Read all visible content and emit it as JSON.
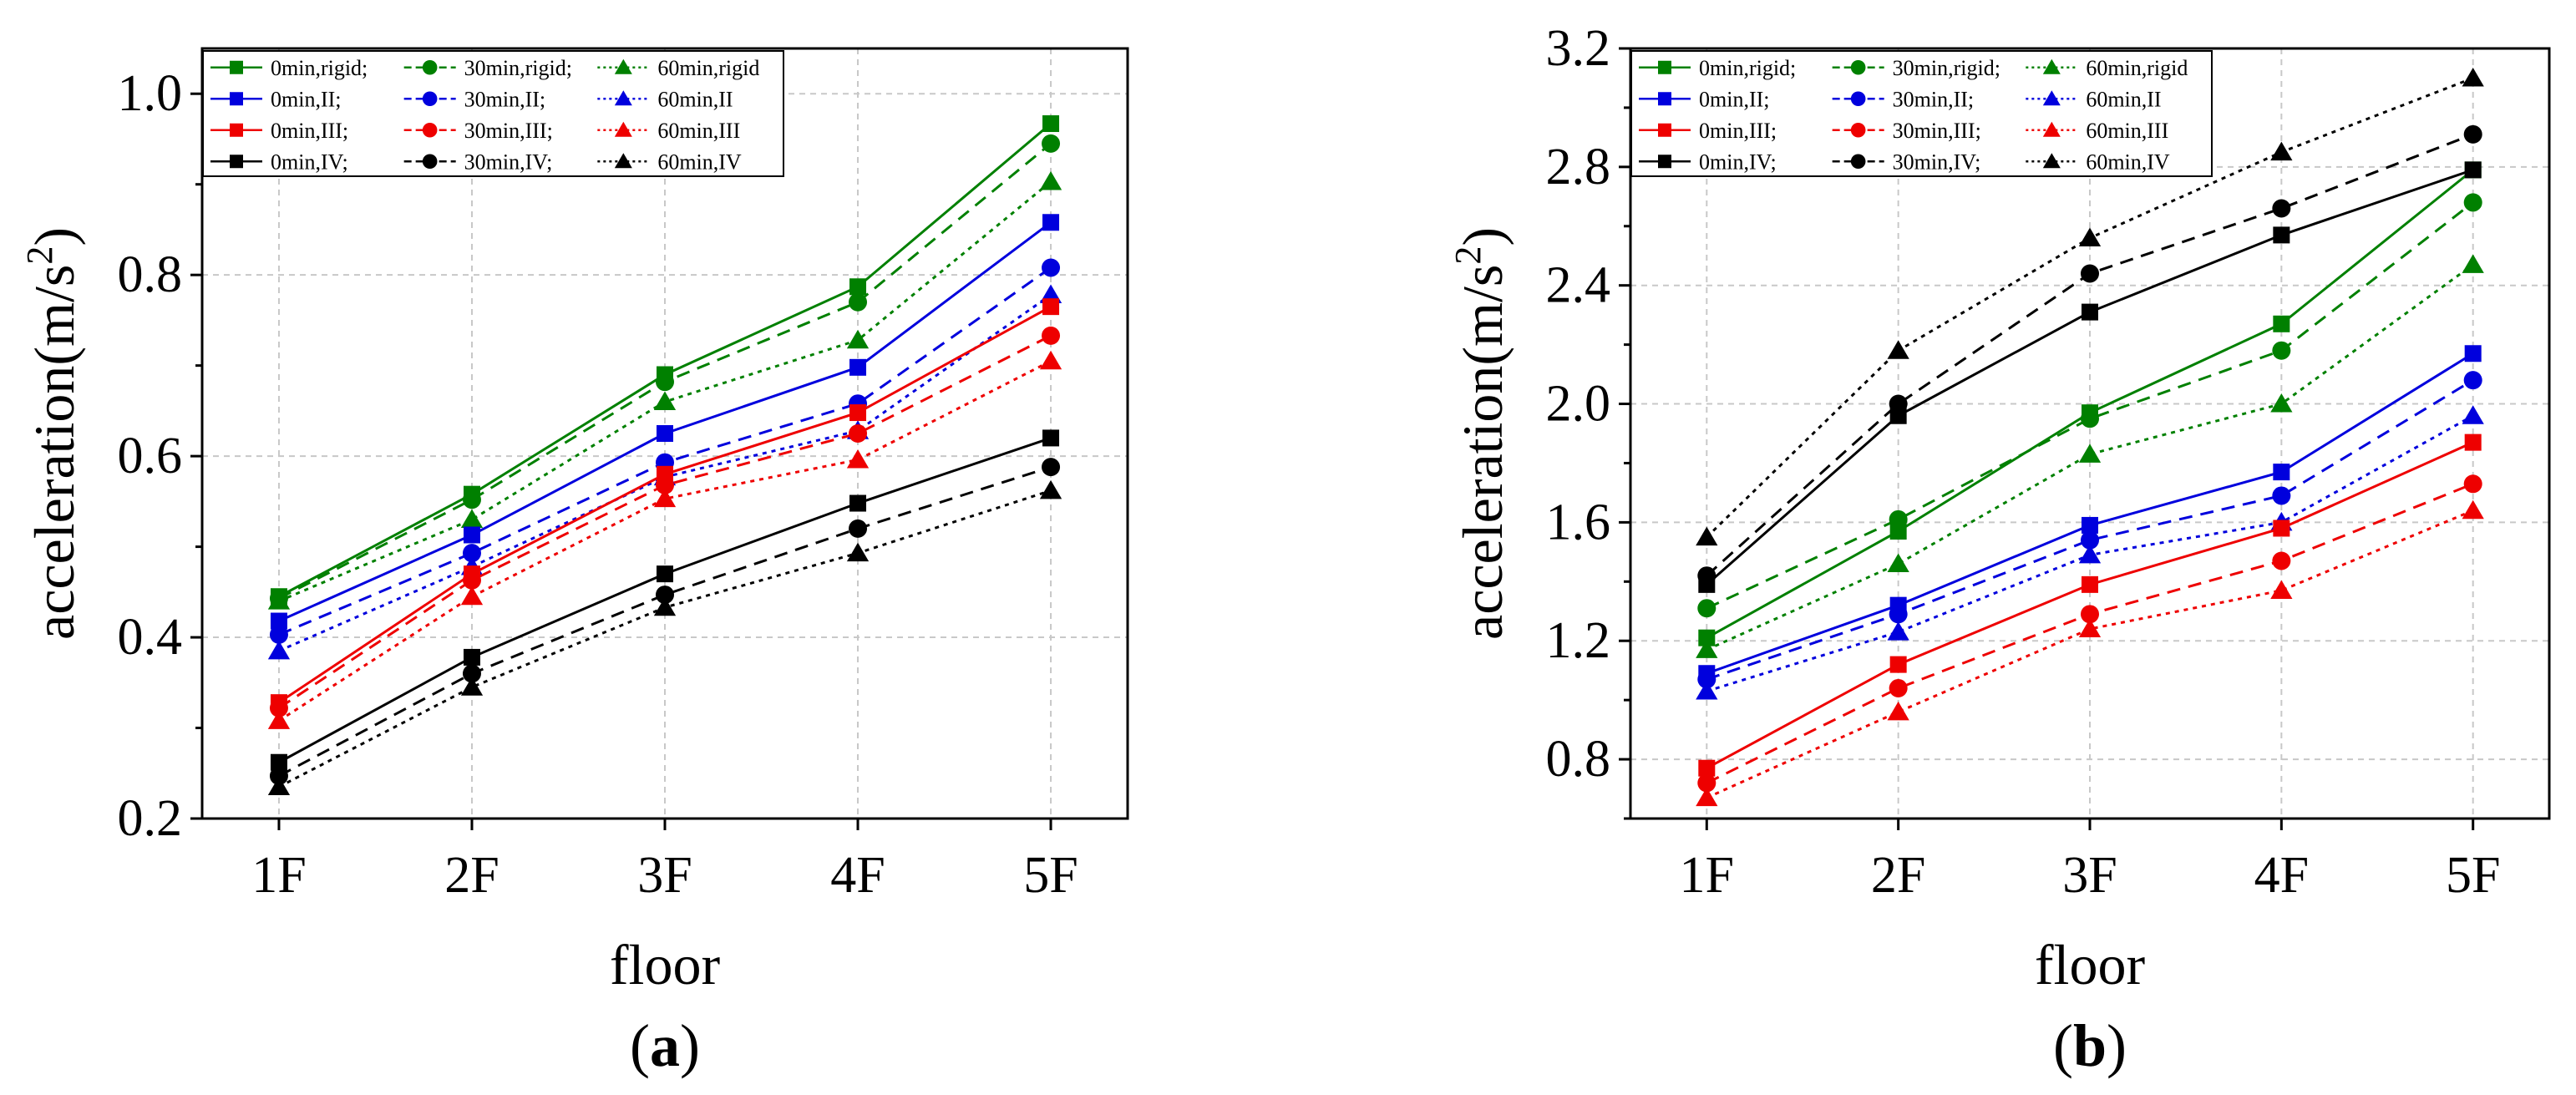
{
  "chart_data": [
    {
      "type": "line",
      "panel_label": "a",
      "xlabel": "floor",
      "ylabel_main": "acceleration(m/s",
      "ylabel_sup": "2",
      "ylabel_end": ")",
      "categories": [
        "1F",
        "2F",
        "3F",
        "4F",
        "5F"
      ],
      "ylim": [
        0.2,
        1.05
      ],
      "yticks": [
        0.2,
        0.4,
        0.6,
        0.8,
        1.0
      ],
      "ytick_labels": [
        "0.2",
        "0.4",
        "0.6",
        "0.8",
        "1.0"
      ],
      "grid": true,
      "legend_position": "top-left",
      "series": [
        {
          "name": "0min,rigid;",
          "color": "#008000",
          "marker": "square",
          "dash": "solid",
          "values": [
            0.445,
            0.558,
            0.69,
            0.787,
            0.967
          ]
        },
        {
          "name": "30min,rigid;",
          "color": "#008000",
          "marker": "circle",
          "dash": "dashed",
          "values": [
            0.443,
            0.552,
            0.682,
            0.77,
            0.945
          ]
        },
        {
          "name": "60min,rigid",
          "color": "#008000",
          "marker": "triangle",
          "dash": "dotted",
          "values": [
            0.44,
            0.53,
            0.66,
            0.728,
            0.903
          ]
        },
        {
          "name": "0min,II;",
          "color": "#0000dd",
          "marker": "square",
          "dash": "solid",
          "values": [
            0.418,
            0.513,
            0.625,
            0.698,
            0.858
          ]
        },
        {
          "name": "30min,II;",
          "color": "#0000dd",
          "marker": "circle",
          "dash": "dashed",
          "values": [
            0.403,
            0.493,
            0.593,
            0.658,
            0.808
          ]
        },
        {
          "name": "60min,II",
          "color": "#0000dd",
          "marker": "triangle",
          "dash": "dotted",
          "values": [
            0.385,
            0.478,
            0.577,
            0.628,
            0.778
          ]
        },
        {
          "name": "0min,III;",
          "color": "#ee0000",
          "marker": "square",
          "dash": "solid",
          "values": [
            0.328,
            0.47,
            0.58,
            0.648,
            0.765
          ]
        },
        {
          "name": "30min,III;",
          "color": "#ee0000",
          "marker": "circle",
          "dash": "dashed",
          "values": [
            0.322,
            0.463,
            0.568,
            0.625,
            0.733
          ]
        },
        {
          "name": "60min,III",
          "color": "#ee0000",
          "marker": "triangle",
          "dash": "dotted",
          "values": [
            0.308,
            0.445,
            0.553,
            0.596,
            0.705
          ]
        },
        {
          "name": "0min,IV;",
          "color": "#000000",
          "marker": "square",
          "dash": "solid",
          "values": [
            0.262,
            0.378,
            0.47,
            0.548,
            0.62
          ]
        },
        {
          "name": "30min,IV;",
          "color": "#000000",
          "marker": "circle",
          "dash": "dashed",
          "values": [
            0.247,
            0.36,
            0.447,
            0.52,
            0.588
          ]
        },
        {
          "name": "60min,IV",
          "color": "#000000",
          "marker": "triangle",
          "dash": "dotted",
          "values": [
            0.235,
            0.345,
            0.433,
            0.493,
            0.562
          ]
        }
      ]
    },
    {
      "type": "line",
      "panel_label": "b",
      "xlabel": "floor",
      "ylabel_main": "acceleration(m/s",
      "ylabel_sup": "2",
      "ylabel_end": ")",
      "categories": [
        "1F",
        "2F",
        "3F",
        "4F",
        "5F"
      ],
      "ylim": [
        0.6,
        3.2
      ],
      "yticks": [
        0.8,
        1.2,
        1.6,
        2.0,
        2.4,
        2.8,
        3.2
      ],
      "ytick_labels": [
        "0.8",
        "1.2",
        "1.6",
        "2.0",
        "2.4",
        "2.8",
        "3.2"
      ],
      "grid": true,
      "legend_position": "top-left",
      "series": [
        {
          "name": "0min,rigid;",
          "color": "#008000",
          "marker": "square",
          "dash": "solid",
          "values": [
            1.21,
            1.57,
            1.97,
            2.27,
            2.79
          ]
        },
        {
          "name": "30min,rigid;",
          "color": "#008000",
          "marker": "circle",
          "dash": "dashed",
          "values": [
            1.31,
            1.61,
            1.95,
            2.18,
            2.68
          ]
        },
        {
          "name": "60min,rigid",
          "color": "#008000",
          "marker": "triangle",
          "dash": "dotted",
          "values": [
            1.17,
            1.46,
            1.83,
            2.0,
            2.47
          ]
        },
        {
          "name": "0min,II;",
          "color": "#0000dd",
          "marker": "square",
          "dash": "solid",
          "values": [
            1.09,
            1.32,
            1.59,
            1.77,
            2.17
          ]
        },
        {
          "name": "30min,II;",
          "color": "#0000dd",
          "marker": "circle",
          "dash": "dashed",
          "values": [
            1.07,
            1.29,
            1.54,
            1.69,
            2.08
          ]
        },
        {
          "name": "60min,II",
          "color": "#0000dd",
          "marker": "triangle",
          "dash": "dotted",
          "values": [
            1.03,
            1.23,
            1.49,
            1.6,
            1.96
          ]
        },
        {
          "name": "0min,III;",
          "color": "#ee0000",
          "marker": "square",
          "dash": "solid",
          "values": [
            0.77,
            1.12,
            1.39,
            1.58,
            1.87
          ]
        },
        {
          "name": "30min,III;",
          "color": "#ee0000",
          "marker": "circle",
          "dash": "dashed",
          "values": [
            0.72,
            1.04,
            1.29,
            1.47,
            1.73
          ]
        },
        {
          "name": "60min,III",
          "color": "#ee0000",
          "marker": "triangle",
          "dash": "dotted",
          "values": [
            0.67,
            0.96,
            1.24,
            1.37,
            1.64
          ]
        },
        {
          "name": "0min,IV;",
          "color": "#000000",
          "marker": "square",
          "dash": "solid",
          "values": [
            1.39,
            1.96,
            2.31,
            2.57,
            2.79
          ]
        },
        {
          "name": "30min,IV;",
          "color": "#000000",
          "marker": "circle",
          "dash": "dashed",
          "values": [
            1.42,
            2.0,
            2.44,
            2.66,
            2.91
          ]
        },
        {
          "name": "60min,IV",
          "color": "#000000",
          "marker": "triangle",
          "dash": "dotted",
          "values": [
            1.55,
            2.18,
            2.56,
            2.85,
            3.1
          ]
        }
      ]
    }
  ]
}
